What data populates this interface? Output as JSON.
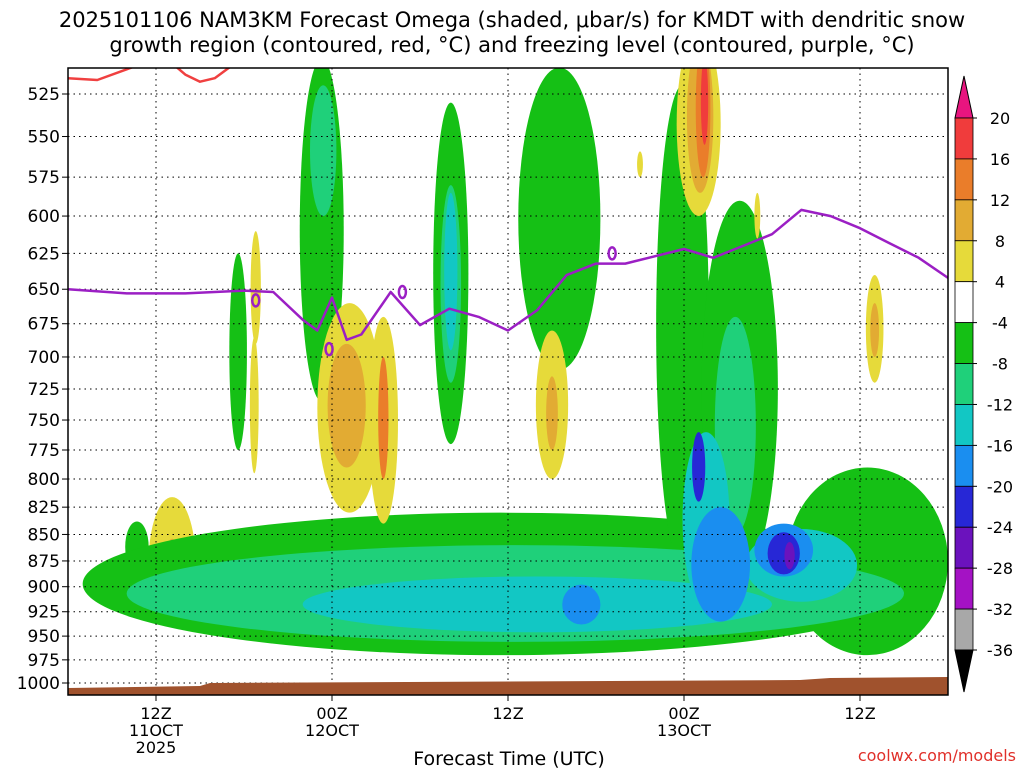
{
  "chart_data": {
    "type": "heatmap",
    "title_line1": "2025101106 NAM3KM Forecast Omega (shaded, μbar/s) for KMDT with dendritic snow",
    "title_line2": "growth region (contoured, red, °C) and freezing level (contoured, purple, °C)",
    "xlabel": "Forecast Time (UTC)",
    "credit": "coolwx.com/models",
    "x_range_hours": [
      0,
      60
    ],
    "x_ticks": [
      {
        "hour": 6,
        "line1": "12Z",
        "line2": "11OCT",
        "line3": "2025"
      },
      {
        "hour": 18,
        "line1": "00Z",
        "line2": "12OCT",
        "line3": ""
      },
      {
        "hour": 30,
        "line1": "12Z",
        "line2": "",
        "line3": ""
      },
      {
        "hour": 42,
        "line1": "00Z",
        "line2": "13OCT",
        "line3": ""
      },
      {
        "hour": 54,
        "line1": "12Z",
        "line2": "",
        "line3": ""
      }
    ],
    "y_range_hpa": [
      1013,
      503
    ],
    "y_ticks": [
      525,
      550,
      575,
      600,
      625,
      650,
      675,
      700,
      725,
      750,
      775,
      800,
      825,
      850,
      875,
      900,
      925,
      950,
      975,
      1000
    ],
    "colorbar": {
      "labels": [
        20,
        16,
        12,
        8,
        4,
        -4,
        -8,
        -12,
        -16,
        -20,
        -24,
        -28,
        -32,
        -36
      ],
      "bins": [
        {
          "range": ">20",
          "color": "#e8157f"
        },
        {
          "range": "16 to 20",
          "color": "#f03c3c"
        },
        {
          "range": "12 to 16",
          "color": "#ea7d2a"
        },
        {
          "range": "8 to 12",
          "color": "#e2ab33"
        },
        {
          "range": "4 to 8",
          "color": "#e6da3a"
        },
        {
          "range": "-4 to 4",
          "color": "#ffffff"
        },
        {
          "range": "-8 to -4",
          "color": "#15c015"
        },
        {
          "range": "-12 to -8",
          "color": "#1fd07a"
        },
        {
          "range": "-16 to -12",
          "color": "#12c7c4"
        },
        {
          "range": "-20 to -16",
          "color": "#1a8ef0"
        },
        {
          "range": "-24 to -20",
          "color": "#2727d6"
        },
        {
          "range": "-28 to -24",
          "color": "#6b12bd"
        },
        {
          "range": "-32 to -28",
          "color": "#a412c4"
        },
        {
          "range": "-36 to -32",
          "color": "#a8a8a8"
        },
        {
          "range": "<-36",
          "color": "#000000"
        }
      ]
    },
    "freezing_level": {
      "color": "#9b1fc4",
      "hours": [
        0,
        4,
        8,
        12,
        14,
        16,
        17,
        18,
        19,
        20,
        22,
        24,
        26,
        28,
        30,
        32,
        34,
        36,
        38,
        40,
        42,
        44,
        46,
        48,
        50,
        52,
        54,
        56,
        58,
        60
      ],
      "pressure": [
        650,
        653,
        653,
        651,
        652,
        672,
        680,
        656,
        687,
        683,
        652,
        676,
        664,
        670,
        680,
        665,
        640,
        632,
        632,
        627,
        622,
        628,
        620,
        612,
        596,
        600,
        608,
        618,
        628,
        642
      ]
    },
    "dgz_contour": {
      "color": "#f04040",
      "hours": [
        0,
        2,
        4,
        6,
        7,
        8,
        9,
        10,
        11,
        12
      ],
      "pressure": [
        516,
        517,
        511,
        505,
        507,
        514,
        518,
        516,
        510,
        503
      ]
    },
    "ground_color": "#a0522d",
    "omega_regions": [
      {
        "category": "-8 to -4",
        "cx": 4.7,
        "cy": 862,
        "rx": 0.8,
        "ry": 24
      },
      {
        "category": "4 to 8",
        "cx": 7.1,
        "cy": 878,
        "rx": 1.6,
        "ry": 62
      },
      {
        "category": "8 to 12",
        "cx": 7.1,
        "cy": 880,
        "rx": 0.5,
        "ry": 26
      },
      {
        "category": "-8 to -4",
        "cx": 11.6,
        "cy": 700,
        "rx": 0.6,
        "ry": 75
      },
      {
        "category": "4 to 8",
        "cx": 12.8,
        "cy": 650,
        "rx": 0.35,
        "ry": 40
      },
      {
        "category": "4 to 8",
        "cx": 12.7,
        "cy": 740,
        "rx": 0.3,
        "ry": 55
      },
      {
        "category": "-8 to -4",
        "cx": 29.5,
        "cy": 900,
        "rx": 28.5,
        "ry": 70
      },
      {
        "category": "-8 to -4",
        "cx": 17.3,
        "cy": 620,
        "rx": 1.5,
        "ry": 115
      },
      {
        "category": "-8 to -4",
        "cx": 26.1,
        "cy": 650,
        "rx": 1.2,
        "ry": 120
      },
      {
        "category": "-8 to -4",
        "cx": 33.5,
        "cy": 610,
        "rx": 2.8,
        "ry": 100
      },
      {
        "category": "-8 to -4",
        "cx": 41.9,
        "cy": 700,
        "rx": 1.8,
        "ry": 180
      },
      {
        "category": "-8 to -4",
        "cx": 45.8,
        "cy": 740,
        "rx": 2.6,
        "ry": 150
      },
      {
        "category": "-8 to -4",
        "cx": 54.5,
        "cy": 880,
        "rx": 5.5,
        "ry": 90
      },
      {
        "category": "-12 to -8",
        "cx": 30.5,
        "cy": 908,
        "rx": 26.5,
        "ry": 48
      },
      {
        "category": "-12 to -8",
        "cx": 17.4,
        "cy": 560,
        "rx": 0.9,
        "ry": 40
      },
      {
        "category": "-12 to -8",
        "cx": 26.1,
        "cy": 650,
        "rx": 0.7,
        "ry": 70
      },
      {
        "category": "-12 to -8",
        "cx": 45.5,
        "cy": 760,
        "rx": 1.4,
        "ry": 90
      },
      {
        "category": "-16 to -12",
        "cx": 26.1,
        "cy": 640,
        "rx": 0.45,
        "ry": 55
      },
      {
        "category": "-16 to -12",
        "cx": 32.0,
        "cy": 918,
        "rx": 16.0,
        "ry": 28
      },
      {
        "category": "-16 to -12",
        "cx": 43.5,
        "cy": 840,
        "rx": 1.6,
        "ry": 80
      },
      {
        "category": "-16 to -12",
        "cx": 50.0,
        "cy": 880,
        "rx": 3.8,
        "ry": 35
      },
      {
        "category": "-20 to -16",
        "cx": 44.5,
        "cy": 880,
        "rx": 2.0,
        "ry": 55
      },
      {
        "category": "-20 to -16",
        "cx": 48.8,
        "cy": 865,
        "rx": 2.0,
        "ry": 25
      },
      {
        "category": "-20 to -16",
        "cx": 35.0,
        "cy": 918,
        "rx": 1.3,
        "ry": 20
      },
      {
        "category": "-24 to -20",
        "cx": 48.8,
        "cy": 868,
        "rx": 1.1,
        "ry": 20
      },
      {
        "category": "-24 to -20",
        "cx": 43.0,
        "cy": 790,
        "rx": 0.45,
        "ry": 30
      },
      {
        "category": "-28 to -24",
        "cx": 49.2,
        "cy": 870,
        "rx": 0.35,
        "ry": 13
      },
      {
        "category": "4 to 8",
        "cx": 19.2,
        "cy": 745,
        "rx": 2.2,
        "ry": 85
      },
      {
        "category": "8 to 12",
        "cx": 19.0,
        "cy": 740,
        "rx": 1.3,
        "ry": 50
      },
      {
        "category": "4 to 8",
        "cx": 21.5,
        "cy": 755,
        "rx": 1.0,
        "ry": 85
      },
      {
        "category": "12 to 16",
        "cx": 21.5,
        "cy": 750,
        "rx": 0.35,
        "ry": 50
      },
      {
        "category": "4 to 8",
        "cx": 33.0,
        "cy": 740,
        "rx": 1.1,
        "ry": 60
      },
      {
        "category": "8 to 12",
        "cx": 33.0,
        "cy": 745,
        "rx": 0.4,
        "ry": 30
      },
      {
        "category": "4 to 8",
        "cx": 43.0,
        "cy": 545,
        "rx": 1.5,
        "ry": 55
      },
      {
        "category": "8 to 12",
        "cx": 43.1,
        "cy": 540,
        "rx": 0.9,
        "ry": 45
      },
      {
        "category": "12 to 16",
        "cx": 43.3,
        "cy": 535,
        "rx": 0.5,
        "ry": 40
      },
      {
        "category": "16 to 20",
        "cx": 43.4,
        "cy": 530,
        "rx": 0.25,
        "ry": 25
      },
      {
        "category": "4 to 8",
        "cx": 55.0,
        "cy": 680,
        "rx": 0.6,
        "ry": 40
      },
      {
        "category": "8 to 12",
        "cx": 55.0,
        "cy": 680,
        "rx": 0.3,
        "ry": 20
      },
      {
        "category": "4 to 8",
        "cx": 47.0,
        "cy": 600,
        "rx": 0.2,
        "ry": 15
      },
      {
        "category": "4 to 8",
        "cx": 39.0,
        "cy": 567,
        "rx": 0.2,
        "ry": 8
      }
    ]
  }
}
